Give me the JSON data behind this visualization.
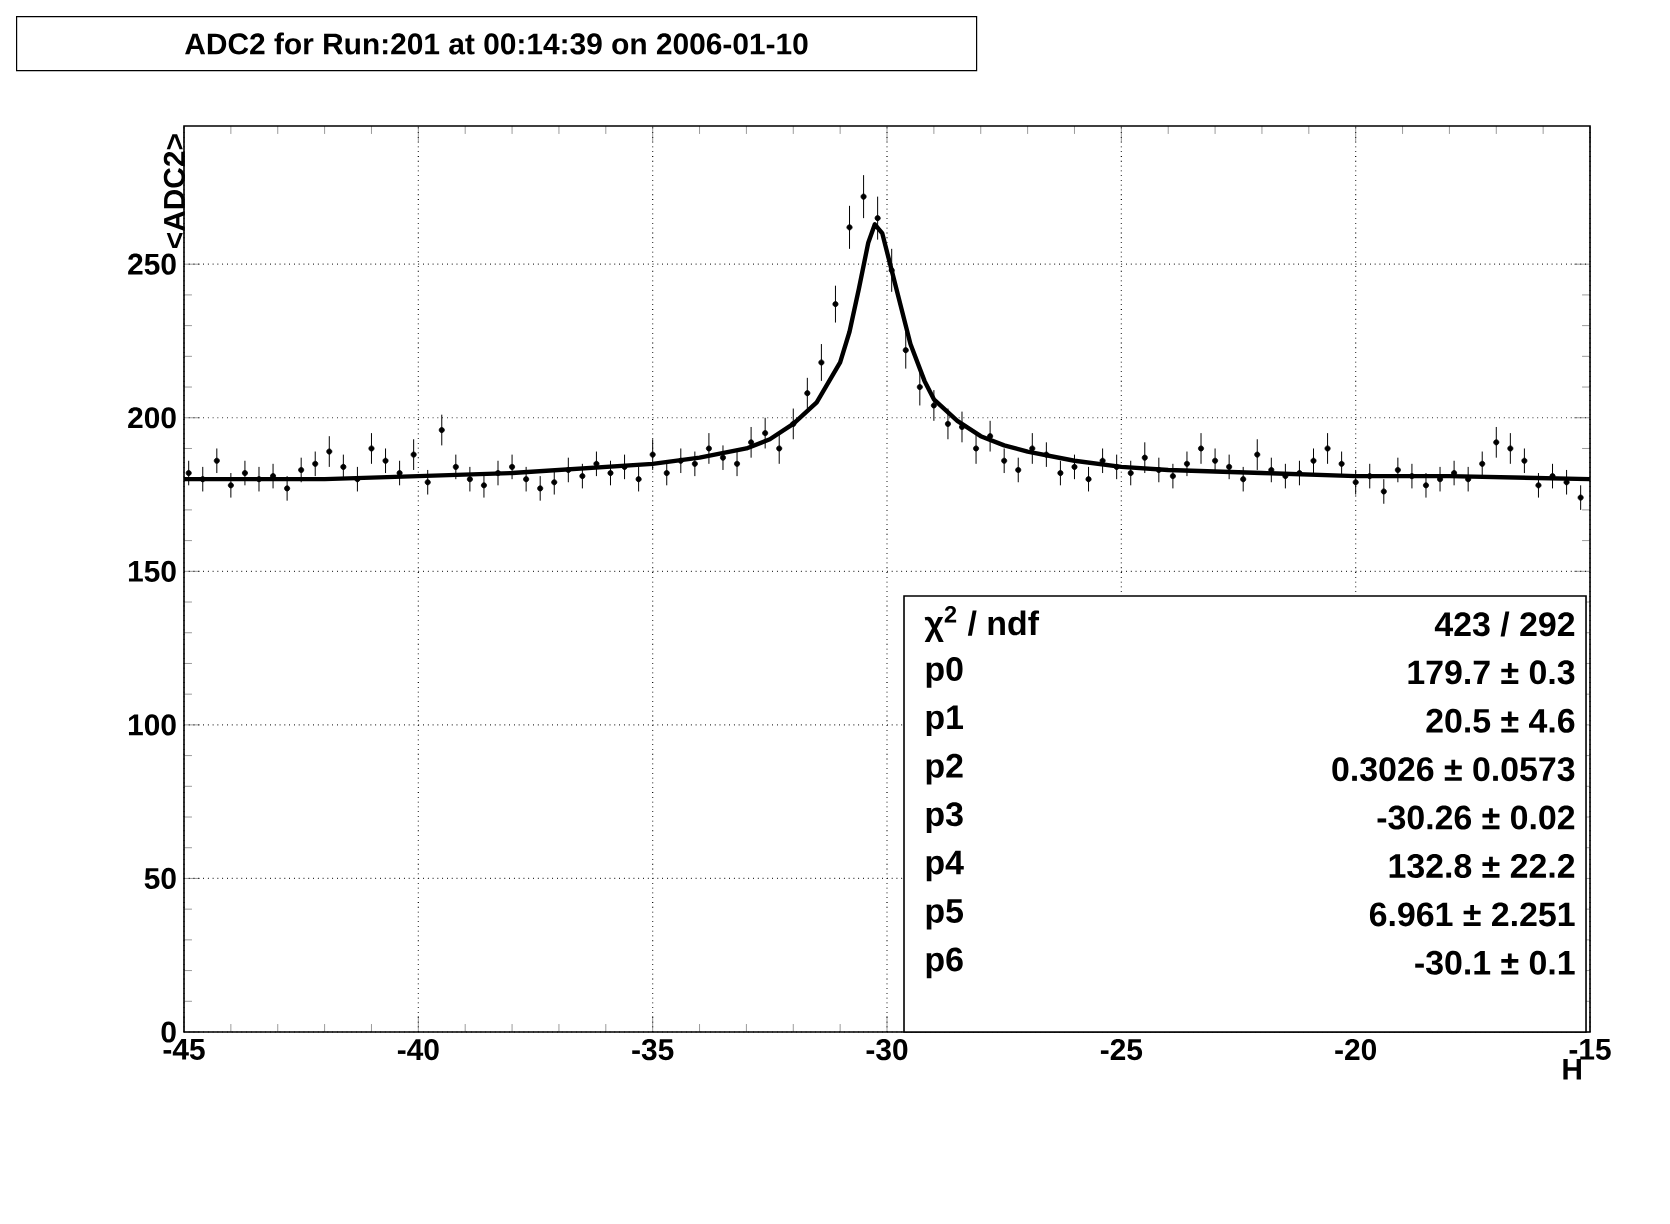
{
  "chart_data": {
    "type": "scatter",
    "title": "ADC2 for Run:201 at 00:14:39 on 2006-01-10",
    "xlabel": "H",
    "ylabel": "<ADC2>",
    "xlim": [
      -45,
      -15
    ],
    "ylim": [
      0,
      295
    ],
    "xticks": [
      -45,
      -40,
      -35,
      -30,
      -25,
      -20,
      -15
    ],
    "yticks": [
      0,
      50,
      100,
      150,
      200,
      250
    ],
    "grid": true,
    "series": [
      {
        "color": "#000000",
        "marker": "circle",
        "x": [
          -44.9,
          -44.6,
          -44.3,
          -44.0,
          -43.7,
          -43.4,
          -43.1,
          -42.8,
          -42.5,
          -42.2,
          -41.9,
          -41.6,
          -41.3,
          -41.0,
          -40.7,
          -40.4,
          -40.1,
          -39.8,
          -39.5,
          -39.2,
          -38.9,
          -38.6,
          -38.3,
          -38.0,
          -37.7,
          -37.4,
          -37.1,
          -36.8,
          -36.5,
          -36.2,
          -35.9,
          -35.6,
          -35.3,
          -35.0,
          -34.7,
          -34.4,
          -34.1,
          -33.8,
          -33.5,
          -33.2,
          -32.9,
          -32.6,
          -32.3,
          -32.0,
          -31.7,
          -31.4,
          -31.1,
          -30.8,
          -30.5,
          -30.2,
          -29.9,
          -29.6,
          -29.3,
          -29.0,
          -28.7,
          -28.4,
          -28.1,
          -27.8,
          -27.5,
          -27.2,
          -26.9,
          -26.6,
          -26.3,
          -26.0,
          -25.7,
          -25.4,
          -25.1,
          -24.8,
          -24.5,
          -24.2,
          -23.9,
          -23.6,
          -23.3,
          -23.0,
          -22.7,
          -22.4,
          -22.1,
          -21.8,
          -21.5,
          -21.2,
          -20.9,
          -20.6,
          -20.3,
          -20.0,
          -19.7,
          -19.4,
          -19.1,
          -18.8,
          -18.5,
          -18.2,
          -17.9,
          -17.6,
          -17.3,
          -17.0,
          -16.7,
          -16.4,
          -16.1,
          -15.8,
          -15.5,
          -15.2
        ],
        "values": [
          182,
          180,
          186,
          178,
          182,
          180,
          181,
          177,
          183,
          185,
          189,
          184,
          180,
          190,
          186,
          182,
          188,
          179,
          196,
          184,
          180,
          178,
          182,
          184,
          180,
          177,
          179,
          183,
          181,
          185,
          182,
          184,
          180,
          188,
          182,
          186,
          185,
          190,
          187,
          185,
          192,
          195,
          190,
          198,
          208,
          218,
          237,
          262,
          272,
          265,
          248,
          222,
          210,
          204,
          198,
          197,
          190,
          194,
          186,
          183,
          190,
          188,
          182,
          184,
          180,
          186,
          184,
          182,
          187,
          183,
          181,
          185,
          190,
          186,
          184,
          180,
          188,
          183,
          181,
          182,
          186,
          190,
          185,
          179,
          181,
          176,
          183,
          181,
          178,
          180,
          182,
          180,
          185,
          192,
          190,
          186,
          178,
          181,
          179,
          174
        ],
        "errors": [
          4,
          4,
          4,
          4,
          4,
          4,
          4,
          4,
          4,
          4,
          5,
          4,
          4,
          5,
          4,
          4,
          5,
          4,
          5,
          4,
          4,
          4,
          4,
          4,
          4,
          4,
          4,
          4,
          4,
          4,
          4,
          4,
          4,
          5,
          4,
          4,
          4,
          5,
          4,
          4,
          5,
          5,
          5,
          5,
          5,
          6,
          6,
          7,
          7,
          7,
          7,
          6,
          6,
          5,
          5,
          5,
          5,
          5,
          4,
          4,
          5,
          4,
          4,
          4,
          4,
          4,
          4,
          4,
          5,
          4,
          4,
          4,
          5,
          4,
          4,
          4,
          5,
          4,
          4,
          4,
          4,
          5,
          4,
          4,
          4,
          4,
          4,
          4,
          4,
          4,
          4,
          4,
          4,
          5,
          5,
          4,
          4,
          4,
          4,
          4
        ]
      },
      {
        "type": "line",
        "color": "#000000",
        "x": [
          -45,
          -42,
          -40,
          -38,
          -36,
          -35,
          -34,
          -33,
          -32.5,
          -32,
          -31.5,
          -31,
          -30.8,
          -30.6,
          -30.4,
          -30.26,
          -30.1,
          -29.9,
          -29.7,
          -29.5,
          -29.2,
          -29,
          -28.5,
          -28,
          -27.5,
          -27,
          -26,
          -25,
          -24,
          -22,
          -20,
          -18,
          -15
        ],
        "values": [
          180,
          180,
          181,
          182,
          184,
          185,
          187,
          190,
          193,
          198,
          205,
          218,
          228,
          242,
          257,
          263,
          260,
          248,
          236,
          224,
          212,
          206,
          199,
          194,
          191,
          189,
          186,
          184,
          183,
          182,
          181,
          181,
          180
        ]
      }
    ],
    "annotations": [
      "χ$^{2}$ / ndf",
      "423 / 292",
      "p0",
      "179.7 ± 0.3",
      "p1",
      "20.5 ± 4.6",
      "p2",
      "0.3026 ± 0.0573",
      "p3",
      "-30.26 ± 0.02",
      "p4",
      "132.8 ± 22.2",
      "p5",
      "6.961 ± 2.251",
      "p6",
      "-30.1 ± 0.1"
    ]
  }
}
